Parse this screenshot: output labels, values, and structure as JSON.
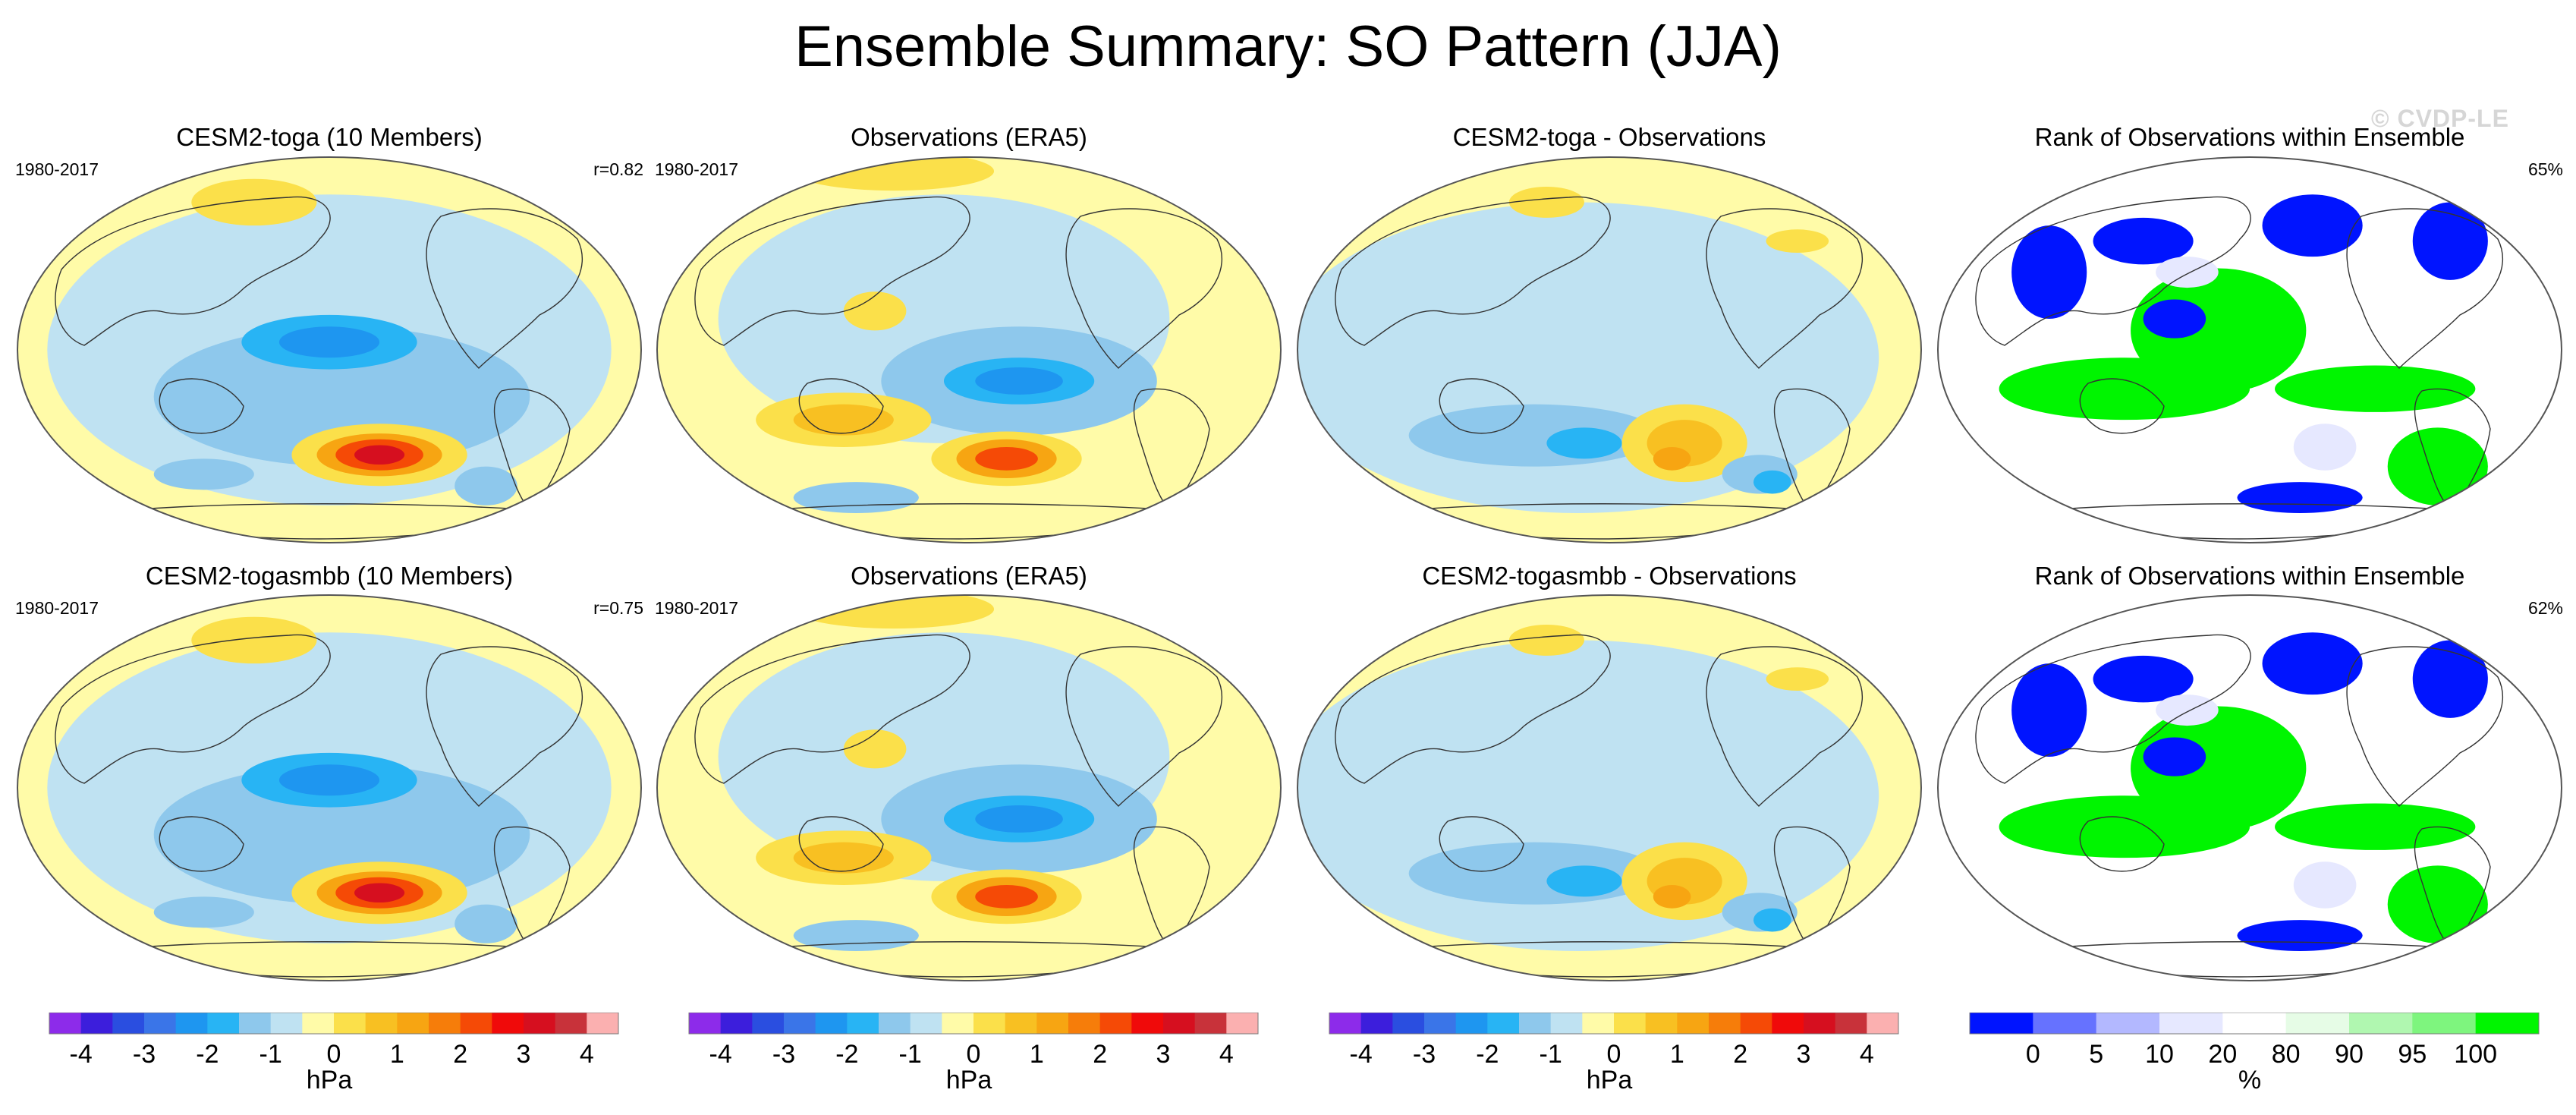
{
  "title": "Ensemble Summary: SO Pattern (JJA)",
  "watermark": "© CVDP-LE",
  "panels": [
    {
      "title": "CESM2-toga (10 Members)",
      "period": "1980-2017",
      "stat": "r=0.82",
      "kind": "model"
    },
    {
      "title": "Observations (ERA5)",
      "period": "1980-2017",
      "stat": "",
      "kind": "obs"
    },
    {
      "title": "CESM2-toga - Observations",
      "period": "",
      "stat": "",
      "kind": "diff"
    },
    {
      "title": "Rank of Observations within Ensemble",
      "period": "",
      "stat": "65%",
      "kind": "rank"
    },
    {
      "title": "CESM2-togasmbb (10 Members)",
      "period": "1980-2017",
      "stat": "r=0.75",
      "kind": "model"
    },
    {
      "title": "Observations (ERA5)",
      "period": "1980-2017",
      "stat": "",
      "kind": "obs"
    },
    {
      "title": "CESM2-togasmbb - Observations",
      "period": "",
      "stat": "",
      "kind": "diff"
    },
    {
      "title": "Rank of Observations within Ensemble",
      "period": "",
      "stat": "62%",
      "kind": "rank"
    }
  ],
  "colorbars": [
    {
      "units": "hPa",
      "tick_labels": [
        "-4",
        "-3",
        "-2",
        "-1",
        "0",
        "1",
        "2",
        "3",
        "4"
      ],
      "colors": [
        "#8d2bea",
        "#3c1edc",
        "#2a4ee0",
        "#3a75e8",
        "#1e96f0",
        "#28b4f4",
        "#8ec8ec",
        "#bfe2f2",
        "#fffba8",
        "#fbe04a",
        "#f8c022",
        "#f7a512",
        "#f67d0a",
        "#f54a06",
        "#f00a0a",
        "#d60f1f",
        "#c8323a",
        "#fbb0b0"
      ]
    },
    {
      "units": "hPa",
      "tick_labels": [
        "-4",
        "-3",
        "-2",
        "-1",
        "0",
        "1",
        "2",
        "3",
        "4"
      ],
      "colors": [
        "#8d2bea",
        "#3c1edc",
        "#2a4ee0",
        "#3a75e8",
        "#1e96f0",
        "#28b4f4",
        "#8ec8ec",
        "#bfe2f2",
        "#fffba8",
        "#fbe04a",
        "#f8c022",
        "#f7a512",
        "#f67d0a",
        "#f54a06",
        "#f00a0a",
        "#d60f1f",
        "#c8323a",
        "#fbb0b0"
      ]
    },
    {
      "units": "hPa",
      "tick_labels": [
        "-4",
        "-3",
        "-2",
        "-1",
        "0",
        "1",
        "2",
        "3",
        "4"
      ],
      "colors": [
        "#8d2bea",
        "#3c1edc",
        "#2a4ee0",
        "#3a75e8",
        "#1e96f0",
        "#28b4f4",
        "#8ec8ec",
        "#bfe2f2",
        "#fffba8",
        "#fbe04a",
        "#f8c022",
        "#f7a512",
        "#f67d0a",
        "#f54a06",
        "#f00a0a",
        "#d60f1f",
        "#c8323a",
        "#fbb0b0"
      ]
    },
    {
      "units": "%",
      "tick_labels": [
        "0",
        "5",
        "10",
        "20",
        "80",
        "90",
        "95",
        "100"
      ],
      "colors": [
        "#0014ff",
        "#6672ff",
        "#b3b8ff",
        "#e6e8ff",
        "#ffffff",
        "#e6fce6",
        "#b0f7b0",
        "#7ef57e",
        "#00f500"
      ]
    }
  ],
  "chart_data": {
    "type": "heatmap",
    "title": "Ensemble Summary: SO Pattern (JJA)",
    "variable_units": [
      "hPa",
      "%"
    ],
    "contour_levels_hPa": [
      -4,
      -3.5,
      -3,
      -2.5,
      -2,
      -1.5,
      -1,
      -0.5,
      0,
      0.5,
      1,
      1.5,
      2,
      2.5,
      3,
      3.5,
      4
    ],
    "rank_levels_percent": [
      0,
      5,
      10,
      20,
      80,
      90,
      95,
      100
    ],
    "pattern_correlations": [
      {
        "model": "CESM2-toga (10 Members)",
        "r": 0.82
      },
      {
        "model": "CESM2-togasmbb (10 Members)",
        "r": 0.75
      }
    ],
    "rank_percent": [
      {
        "model": "CESM2-toga",
        "value": 65
      },
      {
        "model": "CESM2-togasmbb",
        "value": 62
      }
    ],
    "period": "1980-2017"
  }
}
